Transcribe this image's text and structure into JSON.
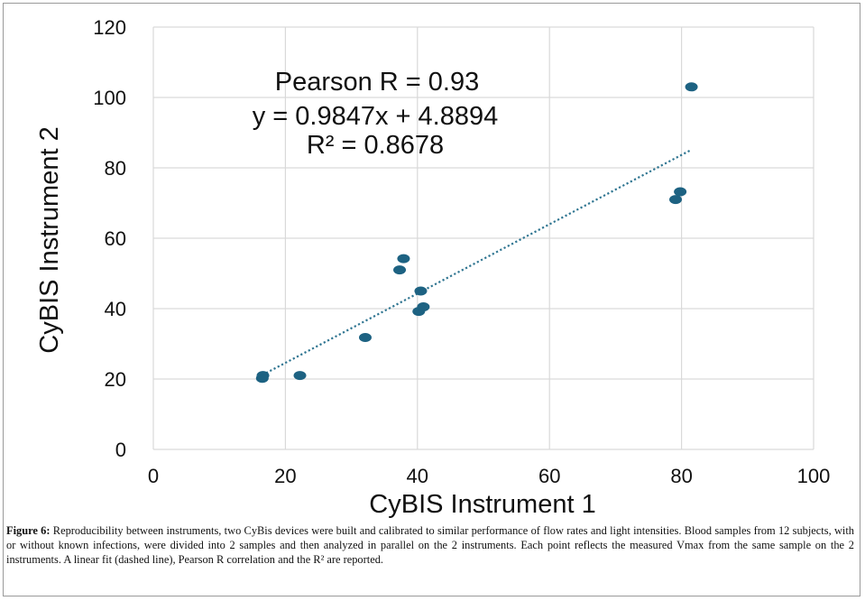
{
  "figure": {
    "caption_label": "Figure 6:",
    "caption_text": " Reproducibility between instruments, two CyBis devices were built and calibrated to similar performance of flow rates and light intensities. Blood samples from 12 subjects, with or without known infections, were divided into 2 samples and then analyzed in parallel on the 2 instruments. Each point reflects the measured Vmax from the same sample on the 2 instruments. A linear fit (dashed line), Pearson R correlation and the R² are reported."
  },
  "chart_data": {
    "type": "scatter",
    "xlabel": "CyBIS Instrument 1",
    "ylabel": "CyBIS Instrument 2",
    "xlim": [
      0,
      100
    ],
    "ylim": [
      0,
      120
    ],
    "x_ticks": [
      "0",
      "20",
      "40",
      "60",
      "80",
      "100"
    ],
    "y_ticks": [
      "0",
      "20",
      "40",
      "60",
      "80",
      "100",
      "120"
    ],
    "grid": true,
    "points": [
      {
        "x": 16.5,
        "y": 20.2
      },
      {
        "x": 16.6,
        "y": 21.0
      },
      {
        "x": 22.2,
        "y": 21.0
      },
      {
        "x": 32.1,
        "y": 31.8
      },
      {
        "x": 37.3,
        "y": 51.0
      },
      {
        "x": 37.9,
        "y": 54.2
      },
      {
        "x": 40.2,
        "y": 39.2
      },
      {
        "x": 40.5,
        "y": 45.0
      },
      {
        "x": 40.9,
        "y": 40.5
      },
      {
        "x": 79.1,
        "y": 71.0
      },
      {
        "x": 79.8,
        "y": 73.2
      },
      {
        "x": 81.5,
        "y": 103.0
      }
    ],
    "trendline": {
      "slope": 0.9847,
      "intercept": 4.8894,
      "x_range": [
        16.5,
        81.5
      ],
      "style": "dotted"
    },
    "annotations": [
      "Pearson R = 0.93",
      "y = 0.9847x + 4.8894",
      "R² = 0.8678"
    ],
    "colors": {
      "points": "#1d6282",
      "trendline": "#2f7591",
      "grid": "#d9d9d9"
    }
  }
}
